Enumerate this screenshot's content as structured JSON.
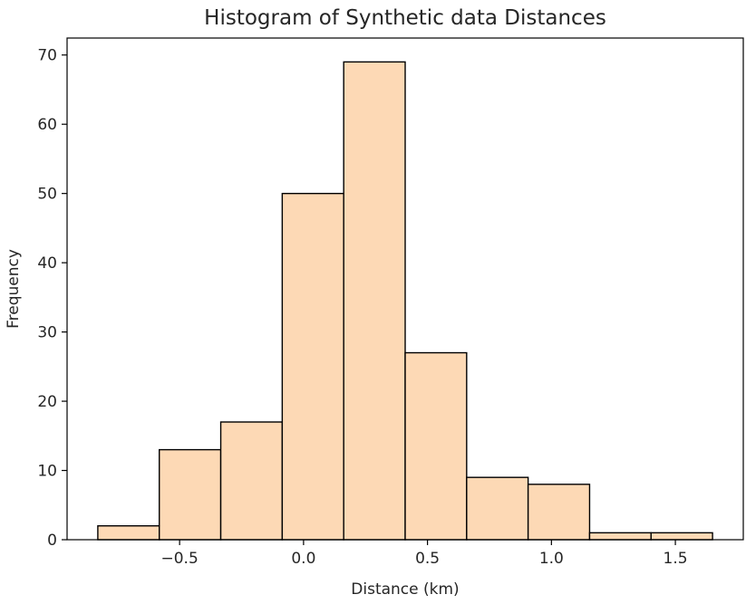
{
  "chart_data": {
    "type": "histogram",
    "title": "Histogram of Synthetic data Distances",
    "xlabel": "Distance (km)",
    "ylabel": "Frequency",
    "bins": [
      {
        "x0": -0.83,
        "x1": -0.582,
        "count": 2
      },
      {
        "x0": -0.582,
        "x1": -0.334,
        "count": 13
      },
      {
        "x0": -0.334,
        "x1": -0.086,
        "count": 17
      },
      {
        "x0": -0.086,
        "x1": 0.162,
        "count": 50
      },
      {
        "x0": 0.162,
        "x1": 0.41,
        "count": 69
      },
      {
        "x0": 0.41,
        "x1": 0.658,
        "count": 27
      },
      {
        "x0": 0.658,
        "x1": 0.906,
        "count": 9
      },
      {
        "x0": 0.906,
        "x1": 1.154,
        "count": 8
      },
      {
        "x0": 1.154,
        "x1": 1.402,
        "count": 1
      },
      {
        "x0": 1.402,
        "x1": 1.65,
        "count": 1
      }
    ],
    "xlim": [
      -0.954,
      1.774
    ],
    "ylim": [
      0,
      72.45
    ],
    "xticks": [
      -0.5,
      0.0,
      0.5,
      1.0,
      1.5
    ],
    "xtick_labels": [
      "−0.5",
      "0.0",
      "0.5",
      "1.0",
      "1.5"
    ],
    "yticks": [
      0,
      10,
      20,
      30,
      40,
      50,
      60,
      70
    ],
    "ytick_labels": [
      "0",
      "10",
      "20",
      "30",
      "40",
      "50",
      "60",
      "70"
    ],
    "bar_color": "#fdd9b5",
    "edge_color": "#000000",
    "grid": false
  }
}
